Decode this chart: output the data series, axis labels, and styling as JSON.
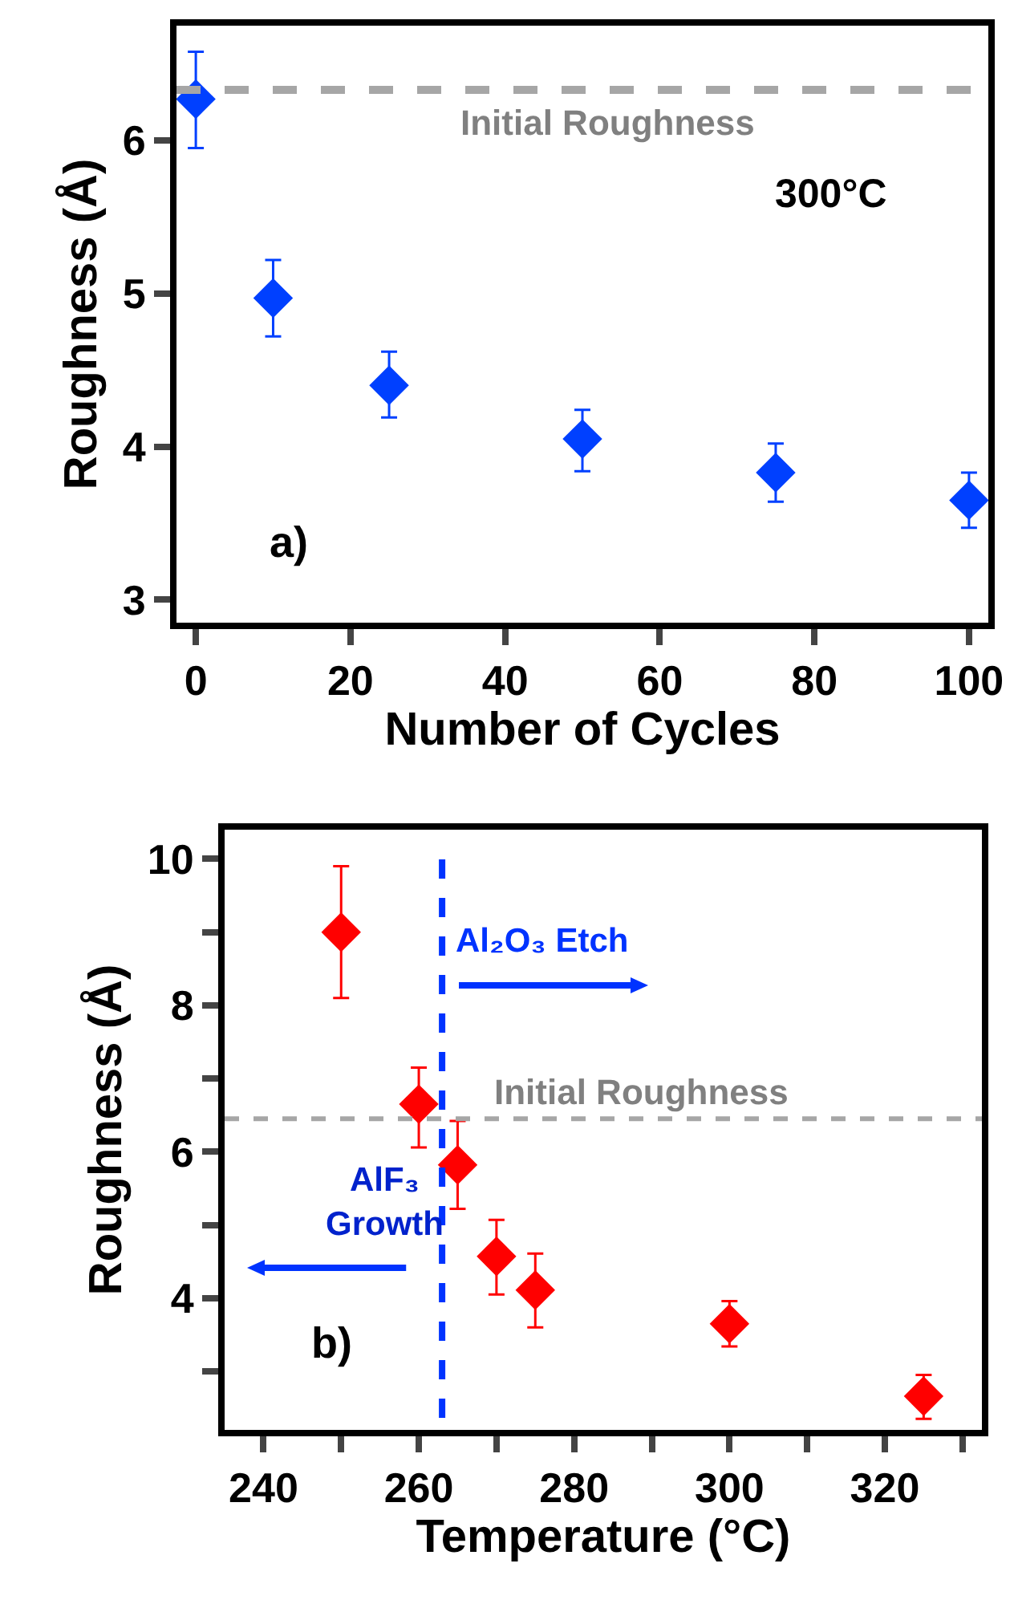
{
  "chart_data": [
    {
      "type": "scatter",
      "xlabel": "Number of Cycles",
      "ylabel": "Roughness (Å)",
      "x": [
        0,
        10,
        25,
        50,
        75,
        100
      ],
      "series": [
        {
          "color": "#0040ff",
          "values": [
            6.27,
            4.97,
            4.4,
            4.05,
            3.83,
            3.65
          ],
          "errors": [
            [
              5.95,
              6.58
            ],
            [
              4.72,
              5.22
            ],
            [
              4.19,
              4.62
            ],
            [
              3.84,
              4.24
            ],
            [
              3.64,
              4.02
            ],
            [
              3.47,
              3.83
            ]
          ]
        }
      ],
      "xlim": [
        -2.5,
        102.5
      ],
      "ylim": [
        2.85,
        6.75
      ],
      "xticks": [
        0,
        20,
        40,
        60,
        80,
        100
      ],
      "yticks": [
        3,
        4,
        5,
        6
      ],
      "ref_lines": [
        {
          "axis": "y",
          "value": 6.33,
          "label": "Initial Roughness",
          "color": "#a6a6a6",
          "line_style": "dashed"
        }
      ],
      "annotations": [
        "300°C",
        "a)"
      ],
      "marker": "diamond"
    },
    {
      "type": "scatter",
      "xlabel": "Temperature (°C)",
      "ylabel": "Roughness (Å)",
      "x": [
        250,
        260,
        265,
        270,
        275,
        300,
        325
      ],
      "series": [
        {
          "color": "#ff0000",
          "values": [
            9.0,
            6.65,
            5.82,
            4.57,
            4.11,
            3.65,
            2.66
          ],
          "errors": [
            [
              8.1,
              9.9
            ],
            [
              6.06,
              7.15
            ],
            [
              5.22,
              6.42
            ],
            [
              4.05,
              5.07
            ],
            [
              3.6,
              4.61
            ],
            [
              3.34,
              3.96
            ],
            [
              2.35,
              2.95
            ]
          ]
        }
      ],
      "xlim": [
        235,
        332.5
      ],
      "ylim": [
        2.2,
        10.4
      ],
      "xticks": [
        240,
        {
          "value": 250,
          "label": null
        },
        260,
        {
          "value": 270,
          "label": null
        },
        280,
        {
          "value": 290,
          "label": null
        },
        300,
        {
          "value": 310,
          "label": null
        },
        320,
        {
          "value": 330,
          "label": null
        }
      ],
      "yticks": [
        {
          "value": 3,
          "label": null
        },
        4,
        {
          "value": 5,
          "label": null
        },
        6,
        {
          "value": 7,
          "label": null
        },
        8,
        {
          "value": 9,
          "label": null
        },
        10
      ],
      "ref_lines": [
        {
          "axis": "y",
          "value": 6.45,
          "label": "Initial Roughness",
          "color": "#a6a6a6",
          "line_style": "dashed"
        },
        {
          "axis": "x",
          "value": 263,
          "color": "#0033ff",
          "line_style": "dashed"
        }
      ],
      "annotations": [
        "Al₂O₃ Etch",
        "AlF₃\nGrowth",
        "b)"
      ],
      "marker": "diamond"
    }
  ]
}
